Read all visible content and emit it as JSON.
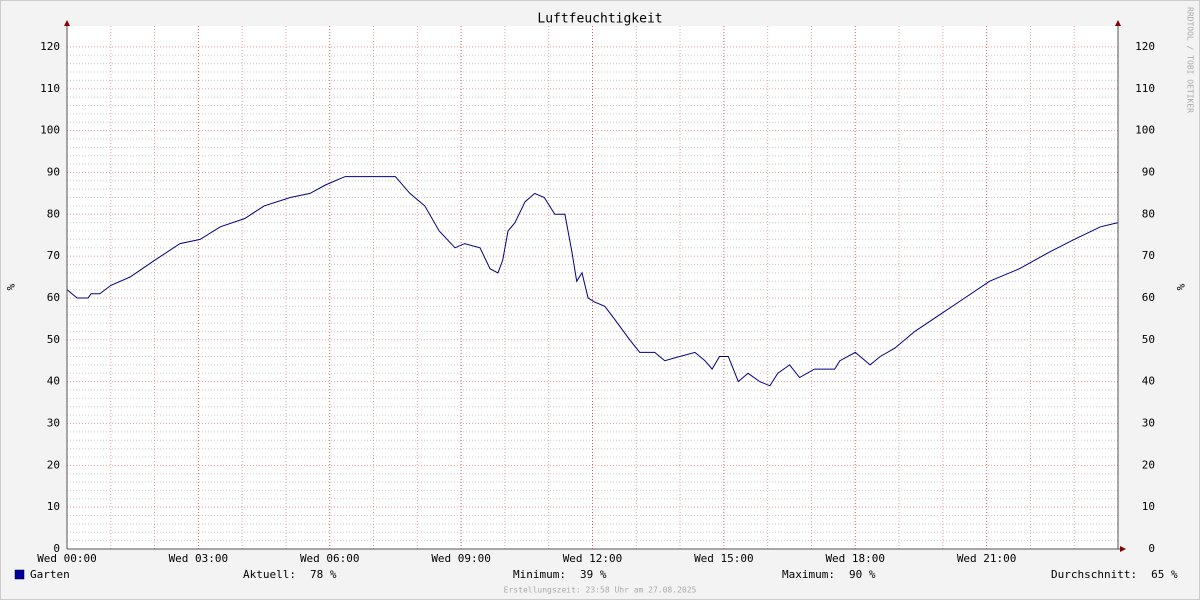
{
  "chart_data": {
    "type": "line",
    "title": "Luftfeuchtigkeit",
    "ylabel": "%",
    "x": [
      0,
      0.23,
      0.48,
      0.55,
      0.75,
      1,
      1.44,
      2,
      2.58,
      3.04,
      3.5,
      4.06,
      4.5,
      5.1,
      5.55,
      5.9,
      6.35,
      6.92,
      7.5,
      7.83,
      8.17,
      8.5,
      8.86,
      9.08,
      9.43,
      9.66,
      9.84,
      9.95,
      10.07,
      10.23,
      10.46,
      10.68,
      10.9,
      11.14,
      11.37,
      11.53,
      11.64,
      11.76,
      11.9,
      12.05,
      12.28,
      12.5,
      12.85,
      13.08,
      13.42,
      13.65,
      13.99,
      14.34,
      14.57,
      14.73,
      14.9,
      15.1,
      15.33,
      15.55,
      15.82,
      16.05,
      16.23,
      16.5,
      16.73,
      17.07,
      17.53,
      17.65,
      18,
      18.34,
      18.57,
      18.9,
      19.36,
      19.93,
      20.5,
      21.07,
      21.75,
      22.44,
      23,
      23.6,
      24
    ],
    "series": [
      {
        "name": "Garten",
        "color": "#000080",
        "swatch": "#0000a0",
        "values": [
          62,
          60,
          60,
          61,
          61,
          63,
          65,
          69,
          73,
          74,
          77,
          79,
          82,
          84,
          85,
          87,
          89,
          89,
          89,
          85,
          82,
          76,
          72,
          73,
          72,
          67,
          66,
          69,
          76,
          78,
          83,
          85,
          84,
          80,
          80,
          71,
          64,
          66,
          60,
          59,
          58,
          55,
          50,
          47,
          47,
          45,
          46,
          47,
          45,
          43,
          46,
          46,
          40,
          42,
          40,
          39,
          42,
          44,
          41,
          43,
          43,
          45,
          47,
          44,
          46,
          48,
          52,
          56,
          60,
          64,
          67,
          71,
          74,
          77,
          78
        ]
      }
    ],
    "xlim": [
      0,
      24
    ],
    "xticks": [
      {
        "value": 0,
        "label": "Wed 00:00"
      },
      {
        "value": 3,
        "label": "Wed 03:00"
      },
      {
        "value": 6,
        "label": "Wed 06:00"
      },
      {
        "value": 9,
        "label": "Wed 09:00"
      },
      {
        "value": 12,
        "label": "Wed 12:00"
      },
      {
        "value": 15,
        "label": "Wed 15:00"
      },
      {
        "value": 18,
        "label": "Wed 18:00"
      },
      {
        "value": 21,
        "label": "Wed 21:00"
      }
    ],
    "ylim": [
      0,
      125
    ],
    "yticks": [
      0,
      10,
      20,
      30,
      40,
      50,
      60,
      70,
      80,
      90,
      100,
      110,
      120
    ],
    "grid": true,
    "legend_stats": [
      {
        "label": "Aktuell:",
        "value": "78 %"
      },
      {
        "label": "Minimum:",
        "value": "39 %"
      },
      {
        "label": "Maximum:",
        "value": "90 %"
      },
      {
        "label": "Durchschnitt:",
        "value": "65 %"
      }
    ],
    "footer": "Erstellungszeit: 23:58 Uhr am 27.08.2025",
    "watermark": "RRDTOOL / TOBI OETIKER"
  }
}
